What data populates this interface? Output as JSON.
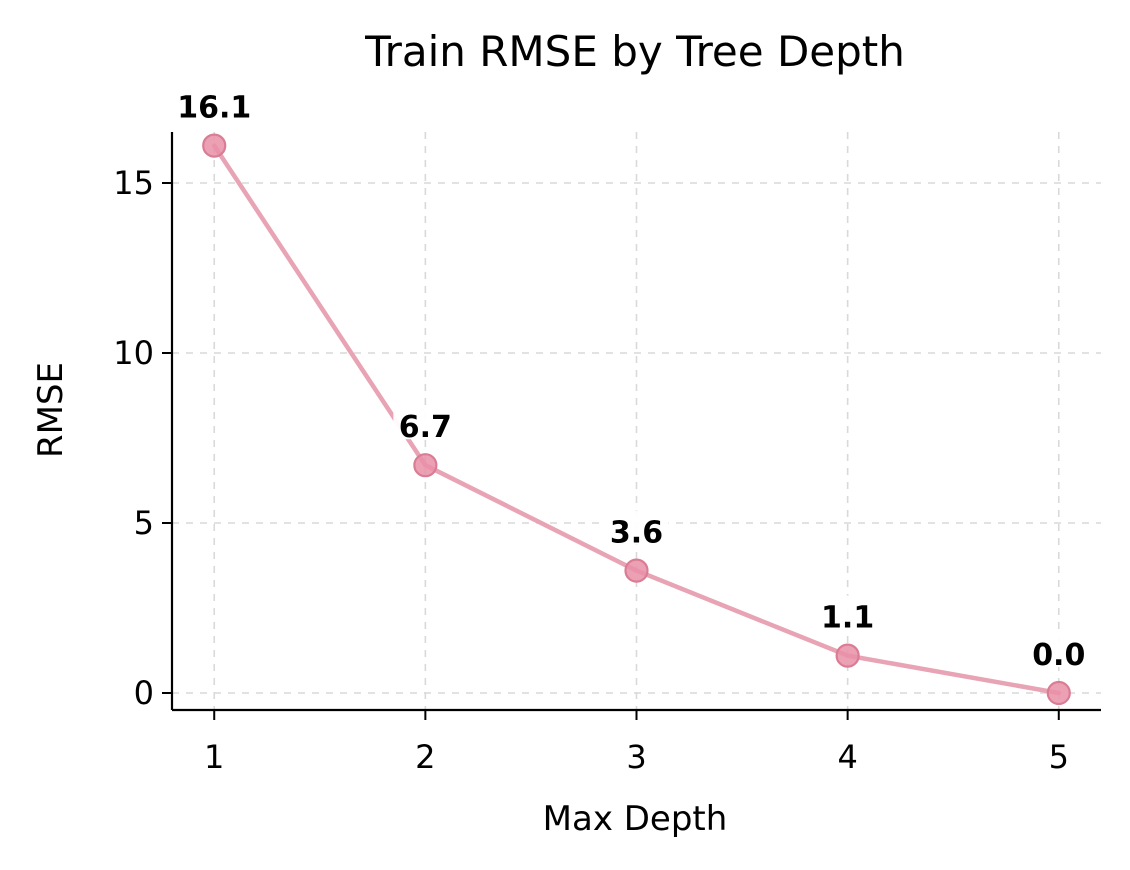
{
  "chart_data": {
    "type": "line",
    "title": "Train RMSE by Tree Depth",
    "xlabel": "Max Depth",
    "ylabel": "RMSE",
    "x": [
      1,
      2,
      3,
      4,
      5
    ],
    "series": [
      {
        "values": [
          16.1,
          6.7,
          3.6,
          1.1,
          0.0
        ],
        "color": "#e8a3b4",
        "marker_color": "#e98fa7",
        "data_labels": [
          "16.1",
          "6.7",
          "3.6",
          "1.1",
          "0.0"
        ]
      }
    ],
    "xlim": [
      0.8,
      5.2
    ],
    "ylim": [
      -0.5,
      16.5
    ],
    "xticks": [
      1,
      2,
      3,
      4,
      5
    ],
    "yticks": [
      0,
      5,
      10,
      15
    ],
    "xtick_labels": [
      "1",
      "2",
      "3",
      "4",
      "5"
    ],
    "ytick_labels": [
      "0",
      "5",
      "10",
      "15"
    ],
    "grid": true
  }
}
